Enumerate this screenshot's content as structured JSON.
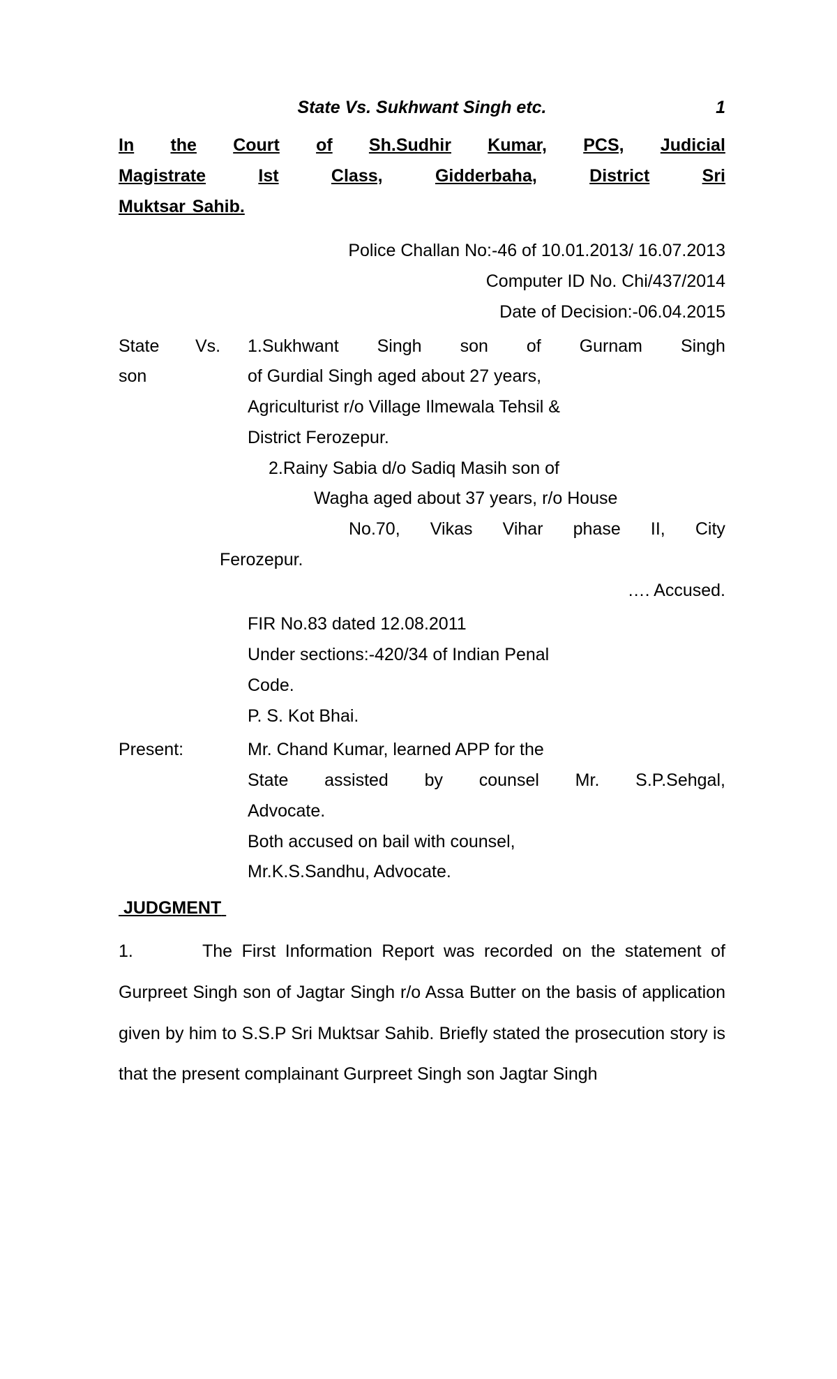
{
  "header": {
    "case_title": "State Vs. Sukhwant Singh etc.",
    "page_number": "1"
  },
  "court": {
    "line1_words": [
      "In",
      "the",
      "Court",
      "of",
      "Sh.Sudhir",
      "Kumar,",
      "PCS,",
      "Judicial"
    ],
    "line2_words": [
      "Magistrate",
      "Ist",
      "Class,",
      "Gidderbaha,",
      "District",
      "Sri"
    ],
    "line3": "Muktsar Sahib."
  },
  "case_info": {
    "challan": "Police Challan No:-46 of 10.01.2013/ 16.07.2013",
    "computer_id": "Computer ID No. Chi/437/2014",
    "decision_date": "Date of Decision:-06.04.2015"
  },
  "parties": {
    "state": "State",
    "vs": "Vs.",
    "son": "son",
    "line1_words": [
      "1.Sukhwant",
      "Singh",
      "son",
      "of",
      "Gurnam",
      "Singh"
    ],
    "line2": "of  Gurdial Singh aged about 27 years,",
    "line3": "Agriculturist r/o Village Ilmewala  Tehsil &",
    "line4": "District Ferozepur.",
    "line5": "2.Rainy Sabia d/o Sadiq Masih son of",
    "line6": "Wagha aged about 37 years, r/o House",
    "line7_words": [
      "No.70,",
      "Vikas",
      "Vihar",
      "phase",
      "II,",
      "City"
    ],
    "line8": "Ferozepur.",
    "accused_label": "…. Accused."
  },
  "case_details": {
    "fir": "FIR No.83  dated 12.08.2011",
    "sections": "Under sections:-420/34 of Indian Penal",
    "code": "Code.",
    "ps": "P. S. Kot Bhai."
  },
  "present": {
    "label": "Present:",
    "line1": "Mr. Chand Kumar, learned APP for the",
    "line2_words": [
      "State",
      "assisted",
      "by",
      "counsel",
      "Mr.",
      "S.P.Sehgal,"
    ],
    "line3": "Advocate.",
    "line4": "Both accused on bail with counsel,",
    "line5": "Mr.K.S.Sandhu, Advocate."
  },
  "judgment": {
    "heading": "JUDGMENT",
    "para_num": "1.",
    "body": "The First Information Report was recorded on the statement of Gurpreet Singh son of Jagtar Singh r/o Assa Butter on the basis of application given by him to S.S.P Sri Muktsar Sahib. Briefly stated the prosecution story is that the present complainant Gurpreet Singh  son Jagtar Singh"
  }
}
